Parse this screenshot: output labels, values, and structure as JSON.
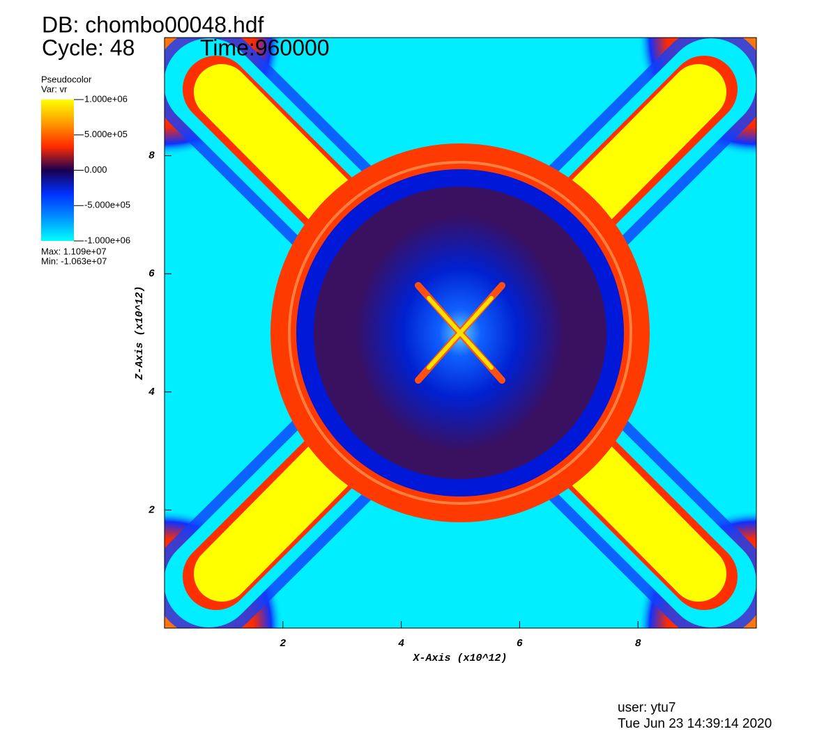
{
  "chart_data": {
    "type": "image",
    "title": "DB: chombo00048.hdf",
    "subtitle": "Cycle: 48",
    "time": "Time:960000",
    "x_label": "X-Axis  (x10^12)",
    "y_label": "Z-Axis  (x10^12)",
    "xlim": [
      0,
      10
    ],
    "ylim": [
      0,
      10
    ],
    "xticks": [
      2,
      4,
      6,
      8
    ],
    "yticks": [
      2,
      4,
      6,
      8
    ],
    "legend": {
      "title": "Pseudocolor",
      "variable": "Var: vr",
      "clim": [
        -1000000,
        1000000
      ],
      "ticks": [
        {
          "value": 1000000,
          "label": "1.000e+06"
        },
        {
          "value": 500000,
          "label": "5.000e+05"
        },
        {
          "value": 0,
          "label": "0.000"
        },
        {
          "value": -500000,
          "label": "-5.000e+05"
        },
        {
          "value": -1000000,
          "label": "-1.000e+06"
        }
      ],
      "colors": [
        "#ffff00",
        "#ff9a00",
        "#ff2a00",
        "#1a0050",
        "#0030ff",
        "#0090ff",
        "#00ffff"
      ],
      "max_label": "Max:  1.109e+07",
      "min_label": "Min: -1.063e+07"
    }
  },
  "footer": {
    "user": "user: ytu7",
    "date": "Tue Jun 23 14:39:14 2020"
  }
}
